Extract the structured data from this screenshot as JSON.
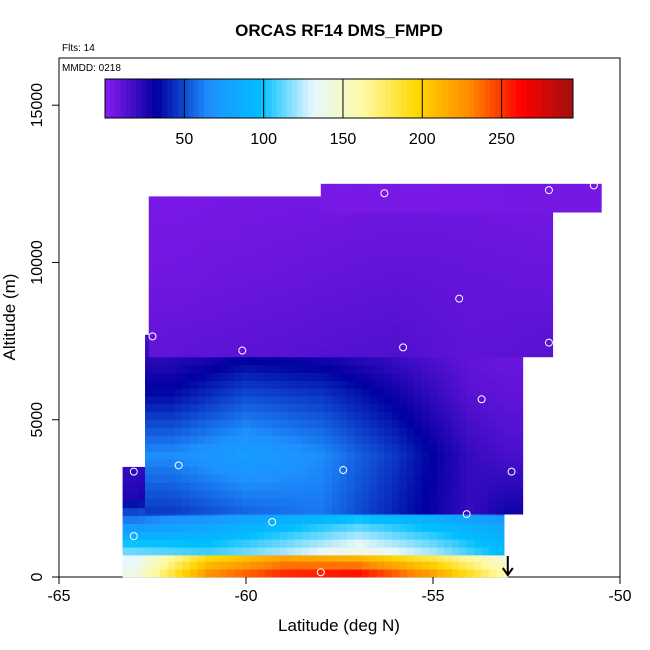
{
  "chart_data": {
    "type": "heatmap",
    "title": "ORCAS RF14 DMS_FMPD",
    "flights_label": "Flts: 14",
    "date_label": "MMDD: 0218",
    "xlabel": "Latitude (deg N)",
    "ylabel": "Altitude (m)",
    "xlim": [
      -65,
      -50
    ],
    "ylim": [
      0,
      16500
    ],
    "x_ticks": [
      -65,
      -60,
      -55,
      -50
    ],
    "y_ticks": [
      0,
      5000,
      10000,
      15000
    ],
    "colorbar": {
      "range": [
        0,
        295
      ],
      "ticks": [
        50,
        100,
        150,
        200,
        250
      ],
      "colors": [
        "#8a1cf0",
        "#0000a0",
        "#1e90ff",
        "#00bfff",
        "#e8f7ff",
        "#fff9a0",
        "#ffd700",
        "#ff8c00",
        "#ff0000",
        "#a01010"
      ]
    },
    "cell_lat": 0.2,
    "cell_alt": 250,
    "layers": [
      {
        "lat_range": [
          -63.3,
          -53.0
        ],
        "alt_range": [
          0,
          700
        ],
        "lat_points": [
          -63,
          -61,
          -59,
          -57,
          -55,
          -53
        ],
        "values": [
          [
            140,
            235,
            260,
            270,
            230,
            160
          ],
          [
            130,
            190,
            215,
            205,
            175,
            140
          ]
        ]
      },
      {
        "lat_range": [
          -63.3,
          -53.1
        ],
        "alt_range": [
          700,
          3500
        ],
        "lat_points": [
          -63,
          -61,
          -59,
          -57,
          -55,
          -53
        ],
        "values": [
          [
            120,
            110,
            125,
            145,
            125,
            95
          ],
          [
            70,
            80,
            95,
            110,
            95,
            80
          ],
          [
            25,
            40,
            55,
            65,
            60,
            35
          ],
          [
            20,
            25,
            35,
            45,
            45,
            30
          ]
        ]
      },
      {
        "lat_range": [
          -62.7,
          -52.6
        ],
        "alt_range": [
          2000,
          7700
        ],
        "lat_points": [
          -62,
          -60,
          -58,
          -56,
          -54,
          -53
        ],
        "values": [
          [
            45,
            55,
            60,
            40,
            20,
            30
          ],
          [
            65,
            75,
            65,
            45,
            20,
            15
          ],
          [
            35,
            50,
            45,
            30,
            12,
            10
          ],
          [
            15,
            20,
            18,
            12,
            8,
            6
          ]
        ]
      },
      {
        "lat_range": [
          -62.6,
          -51.8
        ],
        "alt_range": [
          7000,
          12100
        ],
        "lat_points": [
          -62,
          -59,
          -56,
          -54,
          -52
        ],
        "values": [
          [
            10,
            12,
            14,
            10,
            12
          ],
          [
            6,
            8,
            10,
            9,
            8
          ],
          [
            4,
            5,
            6,
            6,
            5
          ]
        ]
      },
      {
        "lat_range": [
          -58.0,
          -50.5
        ],
        "alt_range": [
          11600,
          12500
        ],
        "lat_points": [
          -58,
          -55,
          -52,
          -50.5
        ],
        "values": [
          [
            4,
            4,
            5,
            5
          ]
        ]
      }
    ],
    "points": [
      {
        "lat": -63.0,
        "alt": 3350
      },
      {
        "lat": -63.0,
        "alt": 1300
      },
      {
        "lat": -62.5,
        "alt": 7650
      },
      {
        "lat": -61.8,
        "alt": 3550
      },
      {
        "lat": -60.1,
        "alt": 7200
      },
      {
        "lat": -59.3,
        "alt": 1750
      },
      {
        "lat": -58.0,
        "alt": 150
      },
      {
        "lat": -57.4,
        "alt": 3400
      },
      {
        "lat": -56.3,
        "alt": 12200
      },
      {
        "lat": -55.8,
        "alt": 7300
      },
      {
        "lat": -54.3,
        "alt": 8850
      },
      {
        "lat": -54.1,
        "alt": 2000
      },
      {
        "lat": -53.7,
        "alt": 5650
      },
      {
        "lat": -52.9,
        "alt": 3350
      },
      {
        "lat": -51.9,
        "alt": 7450
      },
      {
        "lat": -51.9,
        "alt": 12300
      },
      {
        "lat": -50.7,
        "alt": 12450
      }
    ],
    "arrow_lat": -53.0
  }
}
